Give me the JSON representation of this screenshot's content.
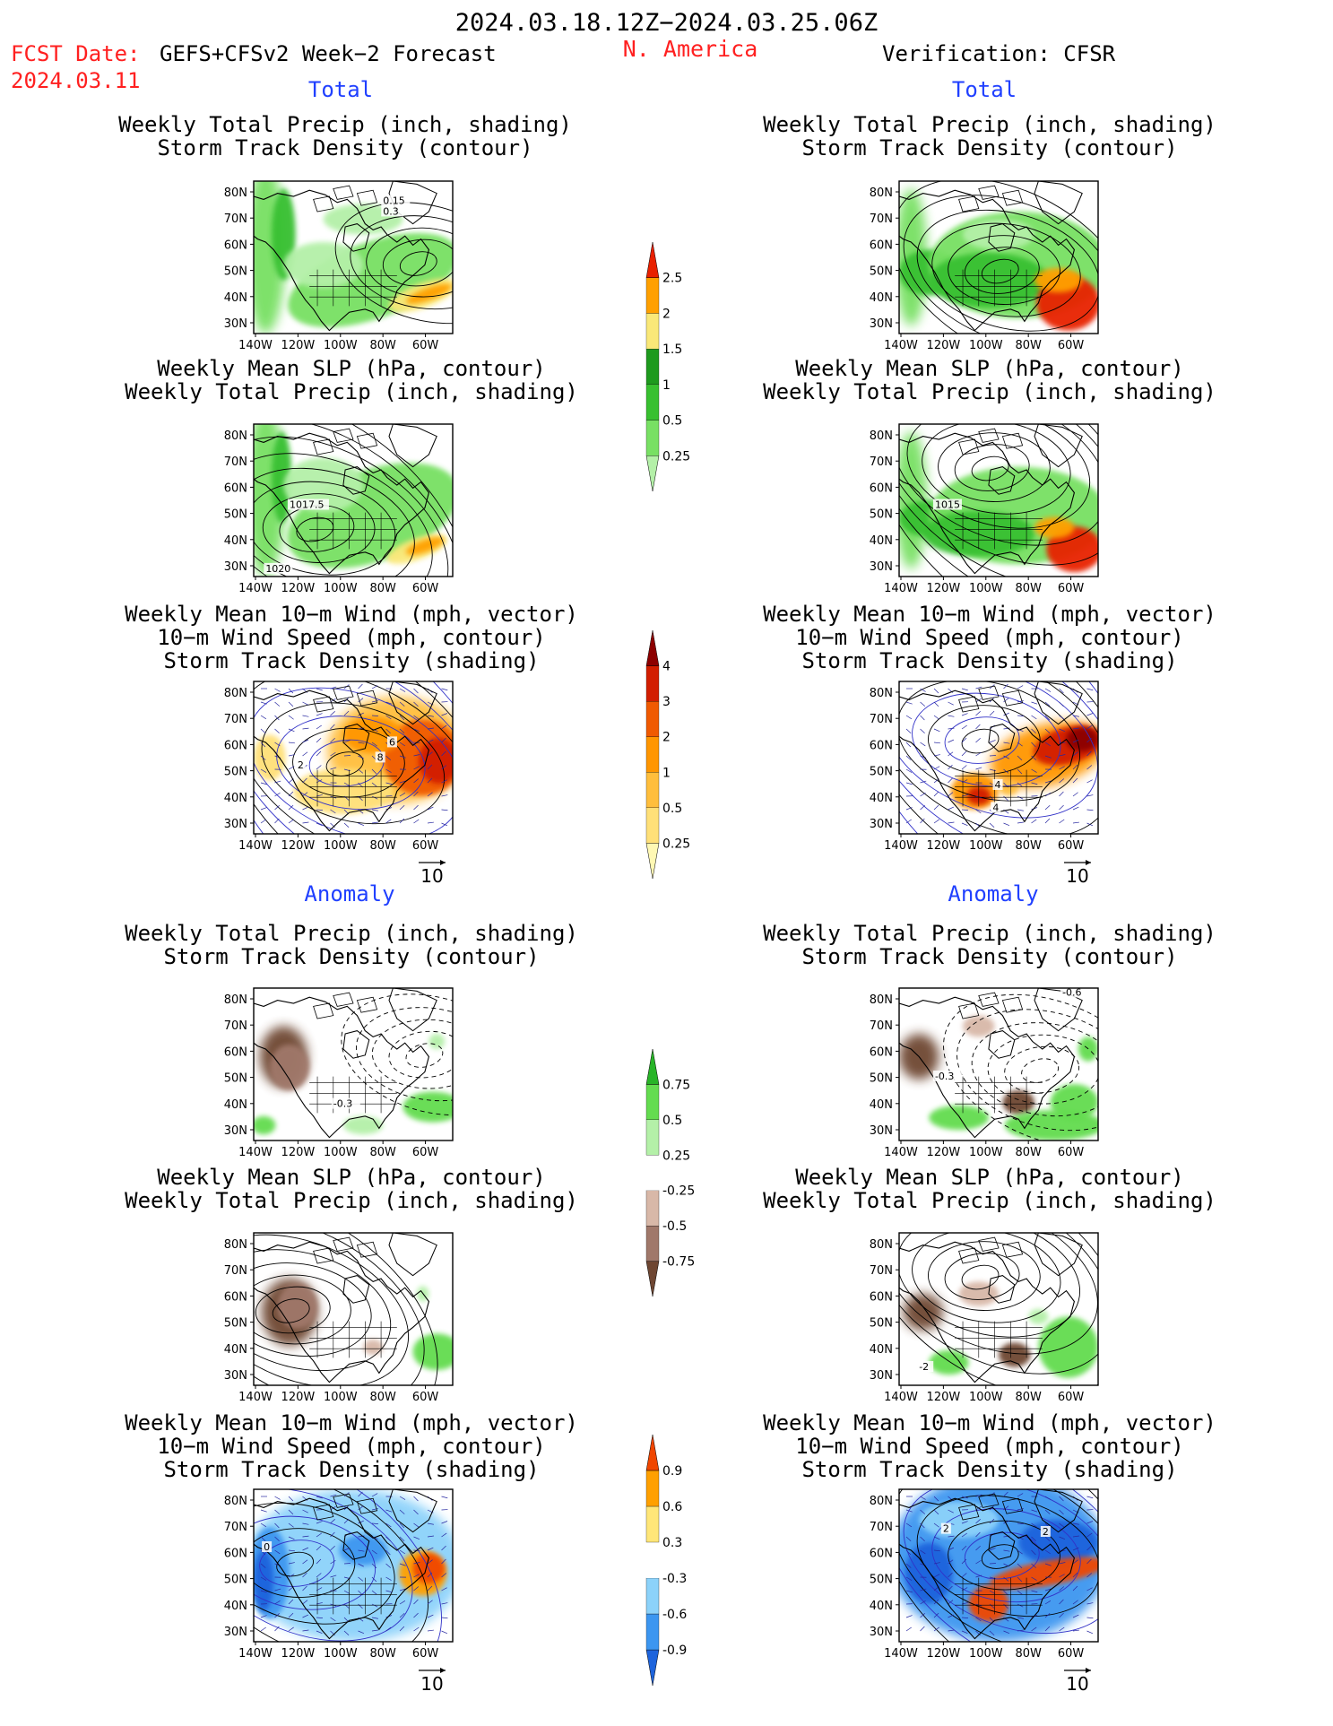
{
  "header": {
    "period": "2024.03.18.12Z−2024.03.25.06Z",
    "fcst_label": "FCST Date:",
    "fcst_model": "GEFS+CFSv2 Week−2 Forecast",
    "fcst_date": "2024.03.11",
    "region": "N. America",
    "verification": "Verification: CFSR"
  },
  "sections": {
    "total": "Total",
    "anomaly": "Anomaly"
  },
  "titles": {
    "precip_track": [
      "Weekly Total Precip (inch, shading)",
      "Storm Track Density (contour)"
    ],
    "slp_precip": [
      "Weekly Mean SLP (hPa, contour)",
      "Weekly Total Precip (inch, shading)"
    ],
    "wind_track": [
      "Weekly Mean 10−m Wind (mph, vector)",
      "10−m Wind Speed (mph, contour)",
      "Storm Track Density (shading)"
    ]
  },
  "axes": {
    "lat_ticks": [
      "80N",
      "70N",
      "60N",
      "50N",
      "40N",
      "30N"
    ],
    "lon_ticks": [
      "140W",
      "120W",
      "100W",
      "80W",
      "60W"
    ]
  },
  "vector_ref": "10",
  "map_labels": {
    "fc_total_precip": [
      "0.15",
      "0.3"
    ],
    "fc_total_slp": [
      "1017.5",
      "1020"
    ],
    "fc_total_wind": [
      "2",
      "8",
      "6"
    ],
    "vf_total_slp": [
      "1015"
    ],
    "vf_total_wind": [
      "4",
      "4"
    ],
    "fc_anom_precip": [
      "-0.3"
    ],
    "vf_anom_precip": [
      "-0.6",
      "-0.3"
    ],
    "vf_anom_slp": [
      "-2"
    ],
    "fc_anom_wind": [
      "0"
    ],
    "vf_anom_wind": [
      "2",
      "2"
    ]
  },
  "colorbars": {
    "precip_total": {
      "labels": [
        "0.25",
        "0.5",
        "1",
        "1.5",
        "2",
        "2.5"
      ],
      "colors": [
        "#b4f0a8",
        "#78e064",
        "#38c030",
        "#1e9a1e",
        "#fae878",
        "#ffa000",
        "#e82000"
      ]
    },
    "storm_total": {
      "labels": [
        "0.25",
        "0.5",
        "1",
        "2",
        "3",
        "4"
      ],
      "colors": [
        "#fff8b4",
        "#ffe078",
        "#ffbe3c",
        "#ff9600",
        "#f05a00",
        "#d21e00",
        "#8c0000"
      ]
    },
    "precip_anom": {
      "labels": [
        "-0.75",
        "-0.5",
        "-0.25",
        "0.25",
        "0.5",
        "0.75"
      ],
      "colors": [
        "#6e4632",
        "#a0786a",
        "#d8b8a8",
        "#ffffff",
        "#b4f0a8",
        "#64dc50",
        "#28b428"
      ]
    },
    "storm_anom": {
      "labels": [
        "-0.9",
        "-0.6",
        "-0.3",
        "0.3",
        "0.6",
        "0.9"
      ],
      "colors": [
        "#1e64dc",
        "#3c96f0",
        "#8cd2fa",
        "#ffffff",
        "#ffe678",
        "#ffa000",
        "#f04600"
      ]
    }
  }
}
